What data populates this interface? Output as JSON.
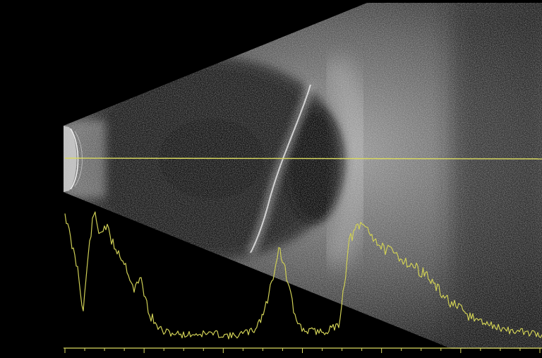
{
  "colors": {
    "background": "#000000",
    "overlay": "#d8d860",
    "trace": "#cfcf55"
  },
  "scan": {
    "type": "ocular-ultrasound-b-scan",
    "cursor": "horizontal-gain-line",
    "a_scan_trace": true,
    "ruler_ticks": 24
  }
}
